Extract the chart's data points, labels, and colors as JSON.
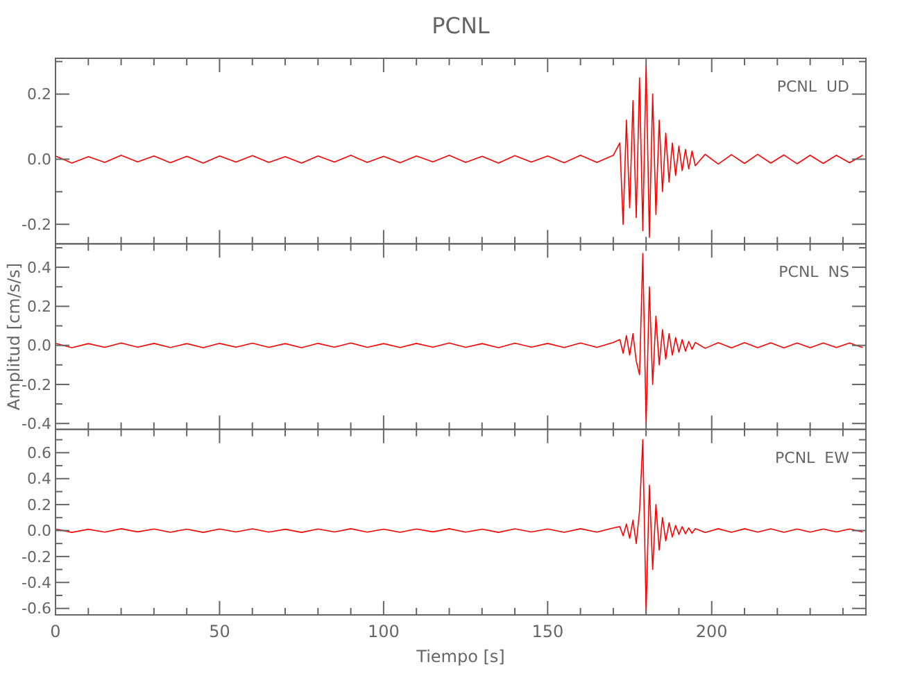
{
  "chart_data": [
    {
      "type": "line",
      "title": "PCNL",
      "annotations": [
        "PCNL  UD"
      ],
      "tick_labels": "y",
      "xlim": [
        0,
        247
      ],
      "ylim": [
        -0.26,
        0.31
      ],
      "xticks": [
        0,
        {
          "value": 10,
          "label": null
        },
        {
          "value": 20,
          "label": null
        },
        {
          "value": 30,
          "label": null
        },
        {
          "value": 40,
          "label": null
        },
        50,
        {
          "value": 60,
          "label": null
        },
        {
          "value": 70,
          "label": null
        },
        {
          "value": 80,
          "label": null
        },
        {
          "value": 90,
          "label": null
        },
        100,
        {
          "value": 110,
          "label": null
        },
        {
          "value": 120,
          "label": null
        },
        {
          "value": 130,
          "label": null
        },
        {
          "value": 140,
          "label": null
        },
        150,
        {
          "value": 160,
          "label": null
        },
        {
          "value": 170,
          "label": null
        },
        {
          "value": 180,
          "label": null
        },
        {
          "value": 190,
          "label": null
        },
        200,
        {
          "value": 210,
          "label": null
        },
        {
          "value": 220,
          "label": null
        },
        {
          "value": 230,
          "label": null
        },
        {
          "value": 240,
          "label": null
        }
      ],
      "yticks": [
        {
          "value": -0.2,
          "label": "-0.2"
        },
        {
          "value": -0.1,
          "label": null
        },
        {
          "value": 0,
          "label": "0.0"
        },
        {
          "value": 0.1,
          "label": null
        },
        {
          "value": 0.2,
          "label": "0.2"
        },
        {
          "value": 0.3,
          "label": null
        }
      ],
      "x": [
        0,
        5,
        10,
        15,
        20,
        25,
        30,
        35,
        40,
        45,
        50,
        55,
        60,
        65,
        70,
        75,
        80,
        85,
        90,
        95,
        100,
        105,
        110,
        115,
        120,
        125,
        130,
        135,
        140,
        145,
        150,
        155,
        160,
        165,
        170,
        172,
        173,
        174,
        175,
        176,
        177,
        178,
        179,
        180,
        181,
        182,
        183,
        184,
        185,
        186,
        187,
        188,
        189,
        190,
        191,
        192,
        193,
        194,
        195,
        198,
        202,
        206,
        210,
        214,
        218,
        222,
        226,
        230,
        234,
        238,
        242,
        246
      ],
      "series": [
        {
          "color": "#ff0000",
          "values": [
            0.01,
            -0.012,
            0.008,
            -0.01,
            0.012,
            -0.008,
            0.01,
            -0.011,
            0.009,
            -0.012,
            0.01,
            -0.009,
            0.011,
            -0.01,
            0.008,
            -0.012,
            0.01,
            -0.009,
            0.012,
            -0.01,
            0.009,
            -0.011,
            0.01,
            -0.008,
            0.012,
            -0.01,
            0.009,
            -0.012,
            0.011,
            -0.009,
            0.01,
            -0.011,
            0.012,
            -0.01,
            0.012,
            0.05,
            -0.2,
            0.12,
            -0.15,
            0.18,
            -0.18,
            0.25,
            -0.22,
            0.29,
            -0.24,
            0.2,
            -0.17,
            0.12,
            -0.1,
            0.08,
            -0.07,
            0.05,
            -0.05,
            0.04,
            -0.035,
            0.03,
            -0.03,
            0.025,
            -0.02,
            0.015,
            -0.015,
            0.014,
            -0.013,
            0.015,
            -0.012,
            0.013,
            -0.014,
            0.012,
            -0.013,
            0.012,
            -0.011,
            0.012
          ]
        }
      ]
    },
    {
      "type": "line",
      "ylabel": "Amplitud [cm/s/s]",
      "annotations": [
        "PCNL  NS"
      ],
      "tick_labels": "y",
      "xlim": [
        0,
        247
      ],
      "ylim": [
        -0.43,
        0.52
      ],
      "xticks": [
        0,
        {
          "value": 10,
          "label": null
        },
        {
          "value": 20,
          "label": null
        },
        {
          "value": 30,
          "label": null
        },
        {
          "value": 40,
          "label": null
        },
        50,
        {
          "value": 60,
          "label": null
        },
        {
          "value": 70,
          "label": null
        },
        {
          "value": 80,
          "label": null
        },
        {
          "value": 90,
          "label": null
        },
        100,
        {
          "value": 110,
          "label": null
        },
        {
          "value": 120,
          "label": null
        },
        {
          "value": 130,
          "label": null
        },
        {
          "value": 140,
          "label": null
        },
        150,
        {
          "value": 160,
          "label": null
        },
        {
          "value": 170,
          "label": null
        },
        {
          "value": 180,
          "label": null
        },
        {
          "value": 190,
          "label": null
        },
        200,
        {
          "value": 210,
          "label": null
        },
        {
          "value": 220,
          "label": null
        },
        {
          "value": 230,
          "label": null
        },
        {
          "value": 240,
          "label": null
        }
      ],
      "yticks": [
        {
          "value": -0.4,
          "label": "-0.4"
        },
        {
          "value": -0.3,
          "label": null
        },
        {
          "value": -0.2,
          "label": "-0.2"
        },
        {
          "value": -0.1,
          "label": null
        },
        {
          "value": 0,
          "label": "0.0"
        },
        {
          "value": 0.1,
          "label": null
        },
        {
          "value": 0.2,
          "label": "0.2"
        },
        {
          "value": 0.3,
          "label": null
        },
        {
          "value": 0.4,
          "label": "0.4"
        },
        {
          "value": 0.5,
          "label": null
        }
      ],
      "x": [
        0,
        5,
        10,
        15,
        20,
        25,
        30,
        35,
        40,
        45,
        50,
        55,
        60,
        65,
        70,
        75,
        80,
        85,
        90,
        95,
        100,
        105,
        110,
        115,
        120,
        125,
        130,
        135,
        140,
        145,
        150,
        155,
        160,
        165,
        170,
        172,
        173,
        174,
        175,
        176,
        177,
        178,
        179,
        180,
        181,
        182,
        183,
        184,
        185,
        186,
        187,
        188,
        189,
        190,
        191,
        192,
        193,
        194,
        195,
        198,
        202,
        206,
        210,
        214,
        218,
        222,
        226,
        230,
        234,
        238,
        242,
        246
      ],
      "series": [
        {
          "color": "#ff0000",
          "values": [
            0.01,
            -0.012,
            0.009,
            -0.01,
            0.012,
            -0.009,
            0.01,
            -0.011,
            0.009,
            -0.012,
            0.01,
            -0.009,
            0.011,
            -0.01,
            0.009,
            -0.012,
            0.01,
            -0.009,
            0.012,
            -0.01,
            0.009,
            -0.011,
            0.01,
            -0.009,
            0.012,
            -0.01,
            0.009,
            -0.012,
            0.011,
            -0.009,
            0.01,
            -0.011,
            0.012,
            -0.01,
            0.015,
            0.03,
            -0.04,
            0.05,
            -0.05,
            0.06,
            -0.08,
            -0.15,
            0.47,
            -0.4,
            0.3,
            -0.2,
            0.15,
            -0.1,
            0.08,
            -0.07,
            0.06,
            -0.05,
            0.04,
            -0.035,
            0.03,
            -0.03,
            0.02,
            -0.02,
            0.015,
            -0.015,
            0.014,
            -0.013,
            0.014,
            -0.012,
            0.013,
            -0.013,
            0.012,
            -0.012,
            0.012,
            -0.011,
            0.012,
            -0.011
          ]
        }
      ]
    },
    {
      "type": "line",
      "xlabel": "Tiempo [s]",
      "annotations": [
        "PCNL  EW"
      ],
      "xlim": [
        0,
        247
      ],
      "ylim": [
        -0.65,
        0.78
      ],
      "xticks": [
        0,
        {
          "value": 10,
          "label": null
        },
        {
          "value": 20,
          "label": null
        },
        {
          "value": 30,
          "label": null
        },
        {
          "value": 40,
          "label": null
        },
        50,
        {
          "value": 60,
          "label": null
        },
        {
          "value": 70,
          "label": null
        },
        {
          "value": 80,
          "label": null
        },
        {
          "value": 90,
          "label": null
        },
        100,
        {
          "value": 110,
          "label": null
        },
        {
          "value": 120,
          "label": null
        },
        {
          "value": 130,
          "label": null
        },
        {
          "value": 140,
          "label": null
        },
        150,
        {
          "value": 160,
          "label": null
        },
        {
          "value": 170,
          "label": null
        },
        {
          "value": 180,
          "label": null
        },
        {
          "value": 190,
          "label": null
        },
        200,
        {
          "value": 210,
          "label": null
        },
        {
          "value": 220,
          "label": null
        },
        {
          "value": 230,
          "label": null
        },
        {
          "value": 240,
          "label": null
        }
      ],
      "yticks": [
        {
          "value": -0.6,
          "label": "-0.6"
        },
        {
          "value": -0.5,
          "label": null
        },
        {
          "value": -0.4,
          "label": "-0.4"
        },
        {
          "value": -0.3,
          "label": null
        },
        {
          "value": -0.2,
          "label": "-0.2"
        },
        {
          "value": -0.1,
          "label": null
        },
        {
          "value": 0,
          "label": "0.0"
        },
        {
          "value": 0.1,
          "label": null
        },
        {
          "value": 0.2,
          "label": "0.2"
        },
        {
          "value": 0.3,
          "label": null
        },
        {
          "value": 0.4,
          "label": "0.4"
        },
        {
          "value": 0.5,
          "label": null
        },
        {
          "value": 0.6,
          "label": "0.6"
        },
        {
          "value": 0.7,
          "label": null
        }
      ],
      "x": [
        0,
        5,
        10,
        15,
        20,
        25,
        30,
        35,
        40,
        45,
        50,
        55,
        60,
        65,
        70,
        75,
        80,
        85,
        90,
        95,
        100,
        105,
        110,
        115,
        120,
        125,
        130,
        135,
        140,
        145,
        150,
        155,
        160,
        165,
        170,
        172,
        173,
        174,
        175,
        176,
        177,
        178,
        179,
        180,
        181,
        182,
        183,
        184,
        185,
        186,
        187,
        188,
        189,
        190,
        191,
        192,
        193,
        194,
        195,
        198,
        202,
        206,
        210,
        214,
        218,
        222,
        226,
        230,
        234,
        238,
        242,
        246
      ],
      "series": [
        {
          "color": "#ff0000",
          "values": [
            0.012,
            -0.014,
            0.01,
            -0.012,
            0.014,
            -0.01,
            0.012,
            -0.013,
            0.011,
            -0.014,
            0.012,
            -0.011,
            0.013,
            -0.012,
            0.01,
            -0.014,
            0.012,
            -0.011,
            0.014,
            -0.012,
            0.011,
            -0.013,
            0.012,
            -0.01,
            0.014,
            -0.012,
            0.011,
            -0.014,
            0.013,
            -0.011,
            0.012,
            -0.013,
            0.014,
            -0.012,
            0.02,
            0.03,
            -0.04,
            0.05,
            -0.06,
            0.08,
            -0.1,
            0.15,
            0.7,
            -0.63,
            0.35,
            -0.3,
            0.2,
            -0.15,
            0.1,
            -0.08,
            0.06,
            -0.05,
            0.04,
            -0.03,
            0.03,
            -0.025,
            0.02,
            -0.02,
            0.015,
            -0.015,
            0.014,
            -0.013,
            0.014,
            -0.012,
            0.013,
            -0.013,
            0.012,
            -0.012,
            0.012,
            -0.011,
            0.012,
            -0.011
          ]
        }
      ]
    }
  ]
}
